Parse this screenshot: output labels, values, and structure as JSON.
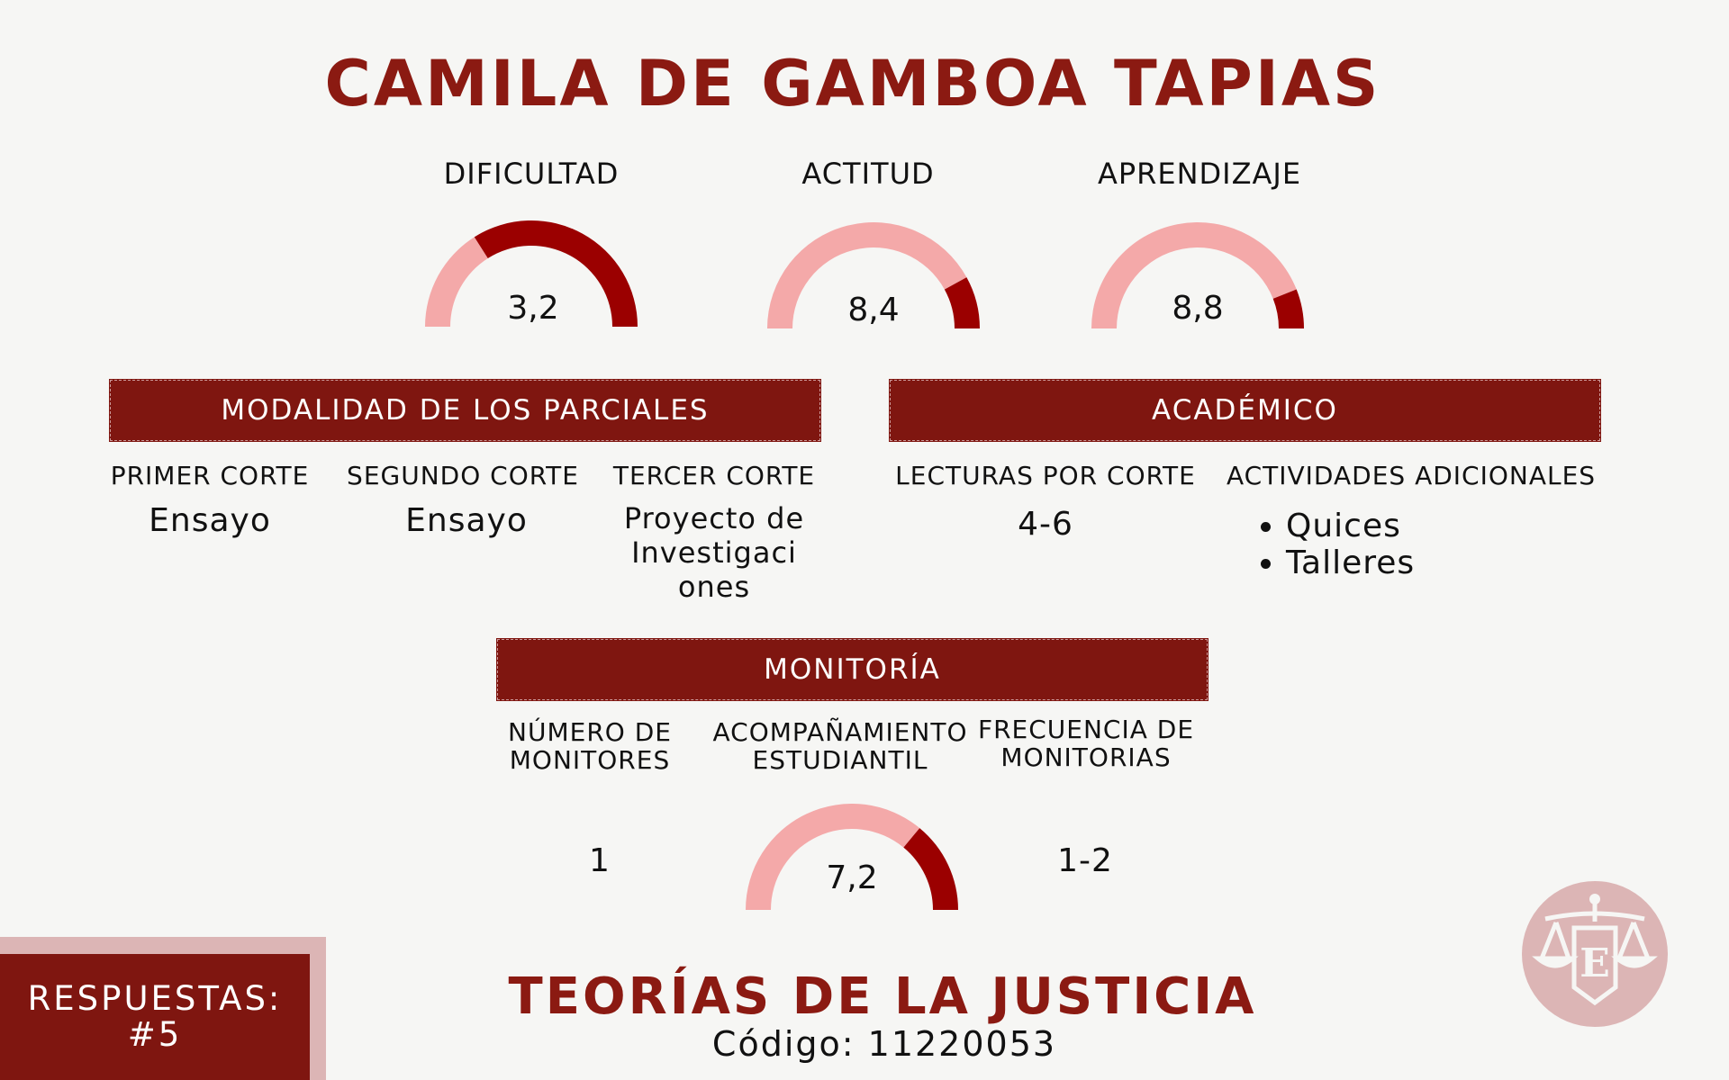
{
  "title": "CAMILA DE GAMBOA TAPIAS",
  "colors": {
    "accent": "#7f1610",
    "title": "#8b1a12",
    "gauge_dark": "#9b0000",
    "gauge_light": "#f4a9a9",
    "logo": "#dcb5b5"
  },
  "gauges": [
    {
      "label": "DIFICULTAD",
      "value": 3.2,
      "display": "3,2",
      "max": 10
    },
    {
      "label": "ACTITUD",
      "value": 8.4,
      "display": "8,4",
      "max": 10
    },
    {
      "label": "APRENDIZAJE",
      "value": 8.8,
      "display": "8,8",
      "max": 10
    },
    {
      "label": "",
      "value": 7.2,
      "display": "7,2",
      "max": 10
    }
  ],
  "modalidad": {
    "header": "MODALIDAD DE LOS PARCIALES",
    "cols": [
      {
        "label": "PRIMER CORTE",
        "value": "Ensayo"
      },
      {
        "label": "SEGUNDO CORTE",
        "value": "Ensayo"
      },
      {
        "label": "TERCER CORTE",
        "lines": [
          "Proyecto de",
          "Investigaci",
          "ones"
        ]
      }
    ]
  },
  "academico": {
    "header": "ACADÉMICO",
    "lecturas_label": "LECTURAS POR CORTE",
    "lecturas_value": "4-6",
    "actividades_label": "ACTIVIDADES ADICIONALES",
    "actividades": [
      "Quices",
      "Talleres"
    ]
  },
  "monitoria": {
    "header": "MONITORÍA",
    "numero_label": [
      "NÚMERO DE",
      "MONITORES"
    ],
    "numero_value": "1",
    "acomp_label": [
      "ACOMPAÑAMIENTO",
      "ESTUDIANTIL"
    ],
    "frecuencia_label": [
      "FRECUENCIA DE",
      "MONITORIAS"
    ],
    "frecuencia_value": "1-2"
  },
  "course": "TEORÍAS DE LA JUSTICIA",
  "code": "Código: 11220053",
  "respuestas": [
    "RESPUESTAS:",
    "#5"
  ],
  "logo": {
    "icon": "scales-of-justice-logo",
    "letter": "E"
  }
}
